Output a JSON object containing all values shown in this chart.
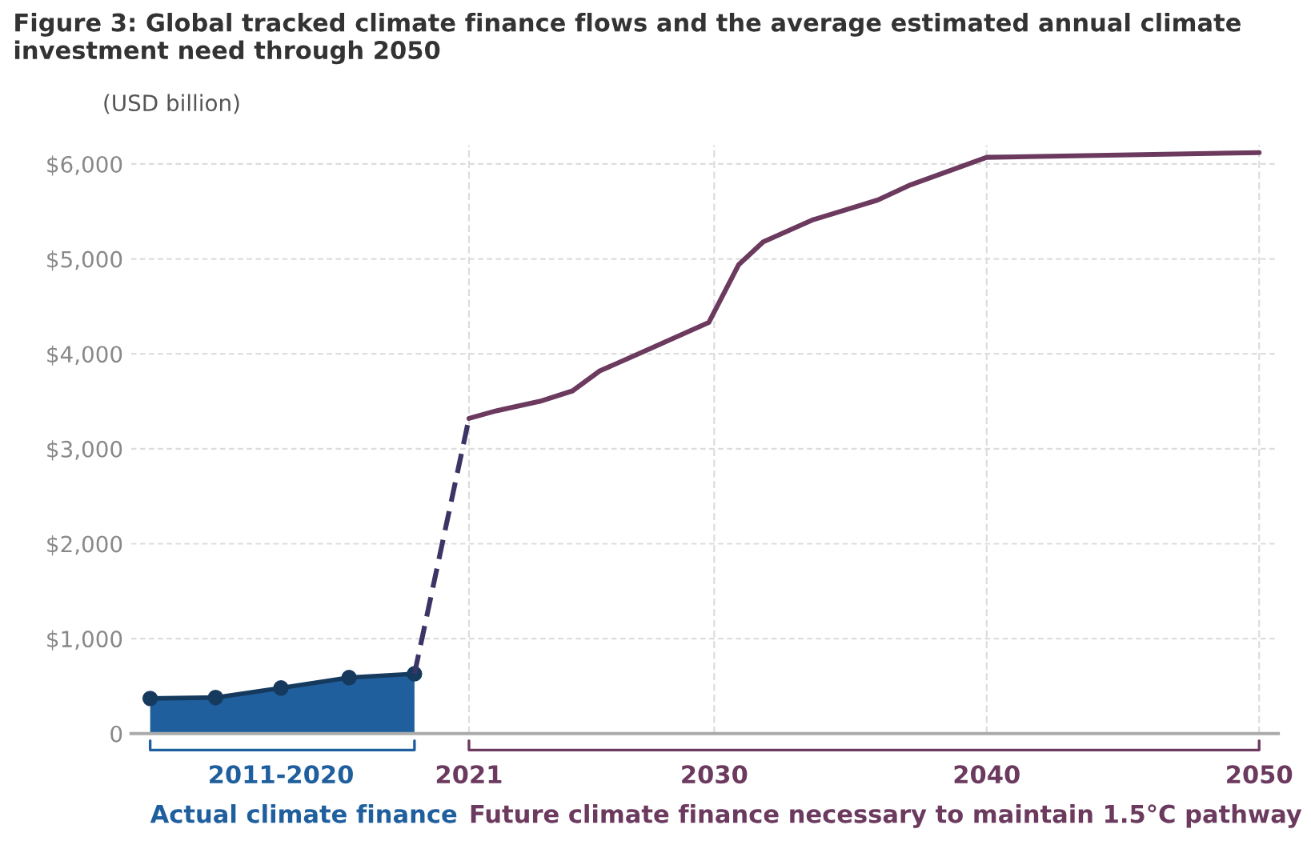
{
  "chart_data": {
    "type": "line",
    "title": "Figure 3: Global tracked climate finance flows and the average estimated annual climate investment need through 2050",
    "ylabel": "(USD billion)",
    "series": [
      {
        "name": "Actual climate finance",
        "type": "area",
        "color": "#1f5f9e",
        "marker": "circle",
        "x": [
          2009.3,
          2011.7,
          2014.1,
          2016.6,
          2019.0
        ],
        "values": [
          370,
          380,
          480,
          590,
          630
        ]
      },
      {
        "color": "#3b3566",
        "line_style": "dashed",
        "x": [
          2019.0,
          2021
        ],
        "values": [
          630,
          3320
        ]
      },
      {
        "name": "Future climate finance necessary to maintain 1.5°C pathway",
        "color": "#6b3a5e",
        "x": [
          2021,
          2022,
          2023.6,
          2024.8,
          2025.8,
          2027.3,
          2029.8,
          2030.9,
          2031.8,
          2033.6,
          2036.0,
          2037.2,
          2040,
          2050
        ],
        "values": [
          3320,
          3400,
          3500,
          3610,
          3820,
          4010,
          4330,
          4940,
          5180,
          5410,
          5620,
          5780,
          6070,
          6120
        ]
      }
    ],
    "xlim": [
      2008.6,
      2050.7
    ],
    "xticks": [
      {
        "value": 2014.1,
        "label": "2011-2020"
      },
      2021,
      2030,
      2040,
      2050
    ],
    "ylim": [
      0,
      6200
    ],
    "yticks": [
      {
        "value": 0,
        "label": "0"
      },
      {
        "value": 1000,
        "label": "$1,000"
      },
      {
        "value": 2000,
        "label": "$2,000"
      },
      {
        "value": 3000,
        "label": "$3,000"
      },
      {
        "value": 4000,
        "label": "$4,000"
      },
      {
        "value": 5000,
        "label": "$5,000"
      },
      {
        "value": 6000,
        "label": "$6,000"
      }
    ],
    "grid": "y",
    "ref_lines": [
      {
        "axis": "x",
        "value": 2021,
        "color": "#dddddd",
        "line_style": "dashed"
      },
      {
        "axis": "x",
        "value": 2030,
        "color": "#dddddd",
        "line_style": "dashed"
      },
      {
        "axis": "x",
        "value": 2040,
        "color": "#dddddd",
        "line_style": "dashed"
      },
      {
        "axis": "x",
        "value": 2050,
        "color": "#dddddd",
        "line_style": "dashed"
      }
    ],
    "legend": false
  }
}
